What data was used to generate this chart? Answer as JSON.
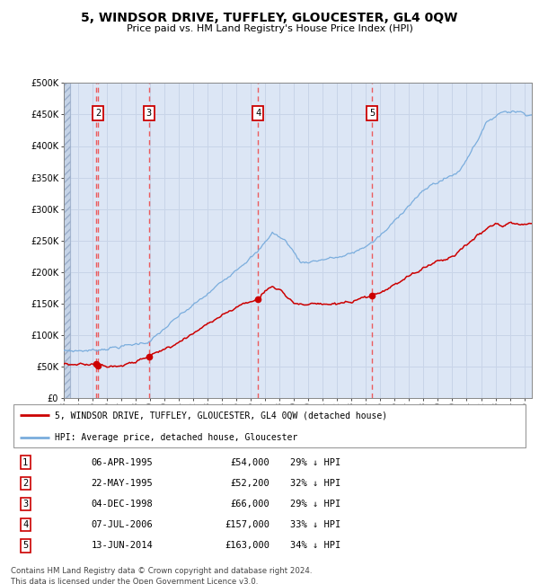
{
  "title": "5, WINDSOR DRIVE, TUFFLEY, GLOUCESTER, GL4 0QW",
  "subtitle": "Price paid vs. HM Land Registry's House Price Index (HPI)",
  "transactions": [
    {
      "num": 1,
      "date": "06-APR-1995",
      "year": 1995.27,
      "price": 54000,
      "pct": "29% ↓ HPI"
    },
    {
      "num": 2,
      "date": "22-MAY-1995",
      "year": 1995.38,
      "price": 52200,
      "pct": "32% ↓ HPI"
    },
    {
      "num": 3,
      "date": "04-DEC-1998",
      "year": 1998.92,
      "price": 66000,
      "pct": "29% ↓ HPI"
    },
    {
      "num": 4,
      "date": "07-JUL-2006",
      "year": 2006.51,
      "price": 157000,
      "pct": "33% ↓ HPI"
    },
    {
      "num": 5,
      "date": "13-JUN-2014",
      "year": 2014.44,
      "price": 163000,
      "pct": "34% ↓ HPI"
    }
  ],
  "legend_label_red": "5, WINDSOR DRIVE, TUFFLEY, GLOUCESTER, GL4 0QW (detached house)",
  "legend_label_blue": "HPI: Average price, detached house, Gloucester",
  "footer1": "Contains HM Land Registry data © Crown copyright and database right 2024.",
  "footer2": "This data is licensed under the Open Government Licence v3.0.",
  "ylim": [
    0,
    500000
  ],
  "xlim_start": 1993.0,
  "xlim_end": 2025.5,
  "grid_color": "#c8d4e8",
  "bg_color": "#dce6f5",
  "red_color": "#cc0000",
  "blue_color": "#7aaddd",
  "dashed_color": "#ee4444",
  "hpi_keypoints_x": [
    1993.0,
    1995.0,
    1997.0,
    1999.0,
    2001.0,
    2003.0,
    2005.0,
    2006.5,
    2007.5,
    2008.5,
    2009.5,
    2010.5,
    2011.5,
    2012.5,
    2013.5,
    2014.5,
    2015.5,
    2016.5,
    2017.5,
    2018.5,
    2019.5,
    2020.5,
    2021.5,
    2022.5,
    2023.5,
    2024.5,
    2025.4
  ],
  "hpi_keypoints_y": [
    75000,
    76000,
    82000,
    90000,
    130000,
    165000,
    205000,
    232000,
    263000,
    248000,
    215000,
    218000,
    222000,
    225000,
    235000,
    248000,
    268000,
    295000,
    318000,
    338000,
    348000,
    360000,
    400000,
    440000,
    455000,
    455000,
    450000
  ],
  "prop_keypoints_x": [
    1993.0,
    1995.2,
    1995.27,
    1995.38,
    1995.5,
    1996.5,
    1997.5,
    1998.92,
    2000.0,
    2001.5,
    2003.0,
    2004.5,
    2005.5,
    2006.0,
    2006.51,
    2007.0,
    2007.5,
    2008.0,
    2008.5,
    2009.0,
    2009.5,
    2010.0,
    2010.5,
    2011.0,
    2011.5,
    2012.0,
    2012.5,
    2013.0,
    2013.5,
    2014.0,
    2014.44,
    2015.0,
    2016.0,
    2017.0,
    2018.0,
    2019.0,
    2020.0,
    2021.0,
    2022.0,
    2023.0,
    2023.5,
    2024.0,
    2024.5,
    2025.3
  ],
  "prop_keypoints_y": [
    54000,
    54000,
    54000,
    52200,
    52000,
    51500,
    54000,
    66000,
    78000,
    95000,
    118000,
    138000,
    150000,
    153000,
    157000,
    170000,
    178000,
    172000,
    162000,
    152000,
    148000,
    148000,
    150000,
    148000,
    149000,
    150000,
    151000,
    152000,
    155000,
    160000,
    163000,
    166000,
    180000,
    193000,
    207000,
    218000,
    224000,
    244000,
    263000,
    278000,
    272000,
    278000,
    276000,
    278000
  ]
}
